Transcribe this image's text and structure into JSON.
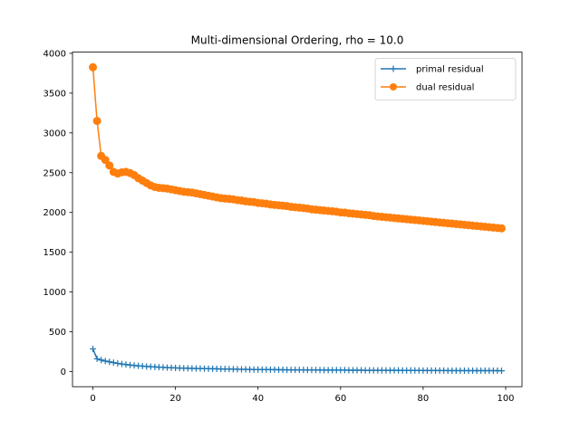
{
  "chart_data": {
    "type": "line",
    "title": "Multi-dimensional Ordering, rho = 10.0",
    "xlabel": "",
    "ylabel": "",
    "xlim": [
      -4.95,
      103.95
    ],
    "ylim": [
      -190,
      4015
    ],
    "xticks": [
      0,
      20,
      40,
      60,
      80,
      100
    ],
    "yticks": [
      0,
      500,
      1000,
      1500,
      2000,
      2500,
      3000,
      3500,
      4000
    ],
    "grid": false,
    "legend_position": "top-right",
    "series": [
      {
        "name": "primal residual",
        "color": "#1f77b4",
        "marker": "plus",
        "values": [
          285,
          160,
          145,
          132,
          122,
          112,
          103,
          95,
          88,
          82,
          77,
          72,
          68,
          64,
          61,
          58,
          55,
          52,
          50,
          48,
          46,
          44,
          42,
          41,
          40,
          39,
          38,
          37,
          36,
          35,
          34,
          33,
          32,
          31,
          30,
          29,
          28,
          28,
          27,
          26,
          26,
          25,
          25,
          24,
          24,
          23,
          23,
          22,
          22,
          21,
          21,
          21,
          20,
          20,
          20,
          19,
          19,
          19,
          18,
          18,
          18,
          18,
          17,
          17,
          17,
          17,
          16,
          16,
          16,
          16,
          15,
          15,
          15,
          15,
          15,
          14,
          14,
          14,
          14,
          14,
          13,
          13,
          13,
          13,
          13,
          13,
          12,
          12,
          12,
          12,
          12,
          12,
          11,
          11,
          11,
          11,
          11,
          11,
          11,
          10
        ]
      },
      {
        "name": "dual residual",
        "color": "#ff7f0e",
        "marker": "circle",
        "values": [
          3825,
          3150,
          2710,
          2660,
          2590,
          2510,
          2490,
          2505,
          2510,
          2495,
          2470,
          2430,
          2400,
          2370,
          2340,
          2320,
          2310,
          2305,
          2300,
          2290,
          2280,
          2270,
          2260,
          2255,
          2250,
          2240,
          2230,
          2220,
          2210,
          2200,
          2190,
          2180,
          2175,
          2170,
          2165,
          2155,
          2150,
          2140,
          2135,
          2130,
          2120,
          2115,
          2110,
          2100,
          2095,
          2090,
          2085,
          2080,
          2070,
          2065,
          2060,
          2055,
          2050,
          2040,
          2035,
          2030,
          2025,
          2020,
          2015,
          2010,
          2000,
          1998,
          1990,
          1985,
          1980,
          1975,
          1970,
          1965,
          1955,
          1950,
          1945,
          1940,
          1935,
          1930,
          1925,
          1920,
          1915,
          1910,
          1905,
          1900,
          1895,
          1890,
          1885,
          1880,
          1875,
          1870,
          1865,
          1860,
          1855,
          1850,
          1845,
          1840,
          1835,
          1830,
          1825,
          1820,
          1815,
          1810,
          1805,
          1800
        ]
      }
    ]
  }
}
